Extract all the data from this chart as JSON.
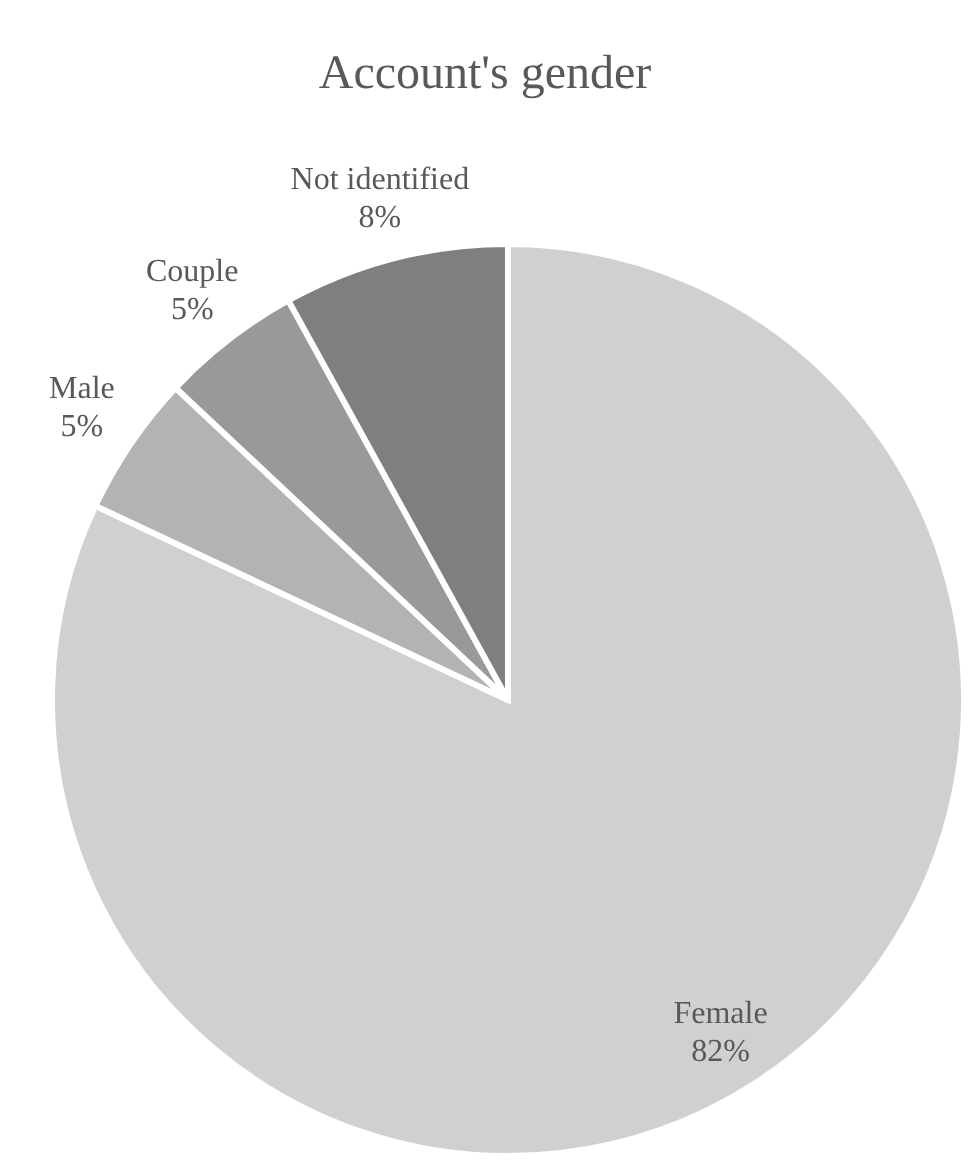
{
  "chart_data": {
    "type": "pie",
    "title": "Account's gender",
    "categories": [
      "Female",
      "Male",
      "Couple",
      "Not identified"
    ],
    "values": [
      82,
      5,
      5,
      8
    ],
    "value_labels": [
      "82%",
      "5%",
      "5%",
      "8%"
    ],
    "colors": [
      "#d0d0d0",
      "#b3b3b3",
      "#999999",
      "#7f7f7f"
    ]
  }
}
